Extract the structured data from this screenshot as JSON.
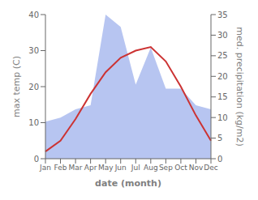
{
  "chart_data": {
    "type": "line",
    "xlabel": "date (month)",
    "ylabel": "max temp (C)",
    "y2label": "med. precipitation (kg/m2)",
    "categories": [
      "Jan",
      "Feb",
      "Mar",
      "Apr",
      "May",
      "Jun",
      "Jul",
      "Aug",
      "Sep",
      "Oct",
      "Nov",
      "Dec"
    ],
    "series": [
      {
        "type": "area",
        "color": "#aabbee",
        "axis": "y2",
        "values": [
          9,
          10,
          12,
          13,
          35,
          32,
          18,
          27,
          17,
          17,
          13,
          12
        ]
      },
      {
        "type": "line",
        "color": "#cc3333",
        "values": [
          2,
          5,
          11,
          18,
          24,
          28,
          30,
          31,
          27,
          20,
          12,
          5
        ]
      }
    ],
    "ylim": [
      0,
      40
    ],
    "yticks": [
      0,
      10,
      20,
      30,
      40
    ],
    "y2lim": [
      0,
      35
    ],
    "y2ticks": [
      0,
      5,
      10,
      15,
      20,
      25,
      30,
      35
    ],
    "grid": false
  }
}
